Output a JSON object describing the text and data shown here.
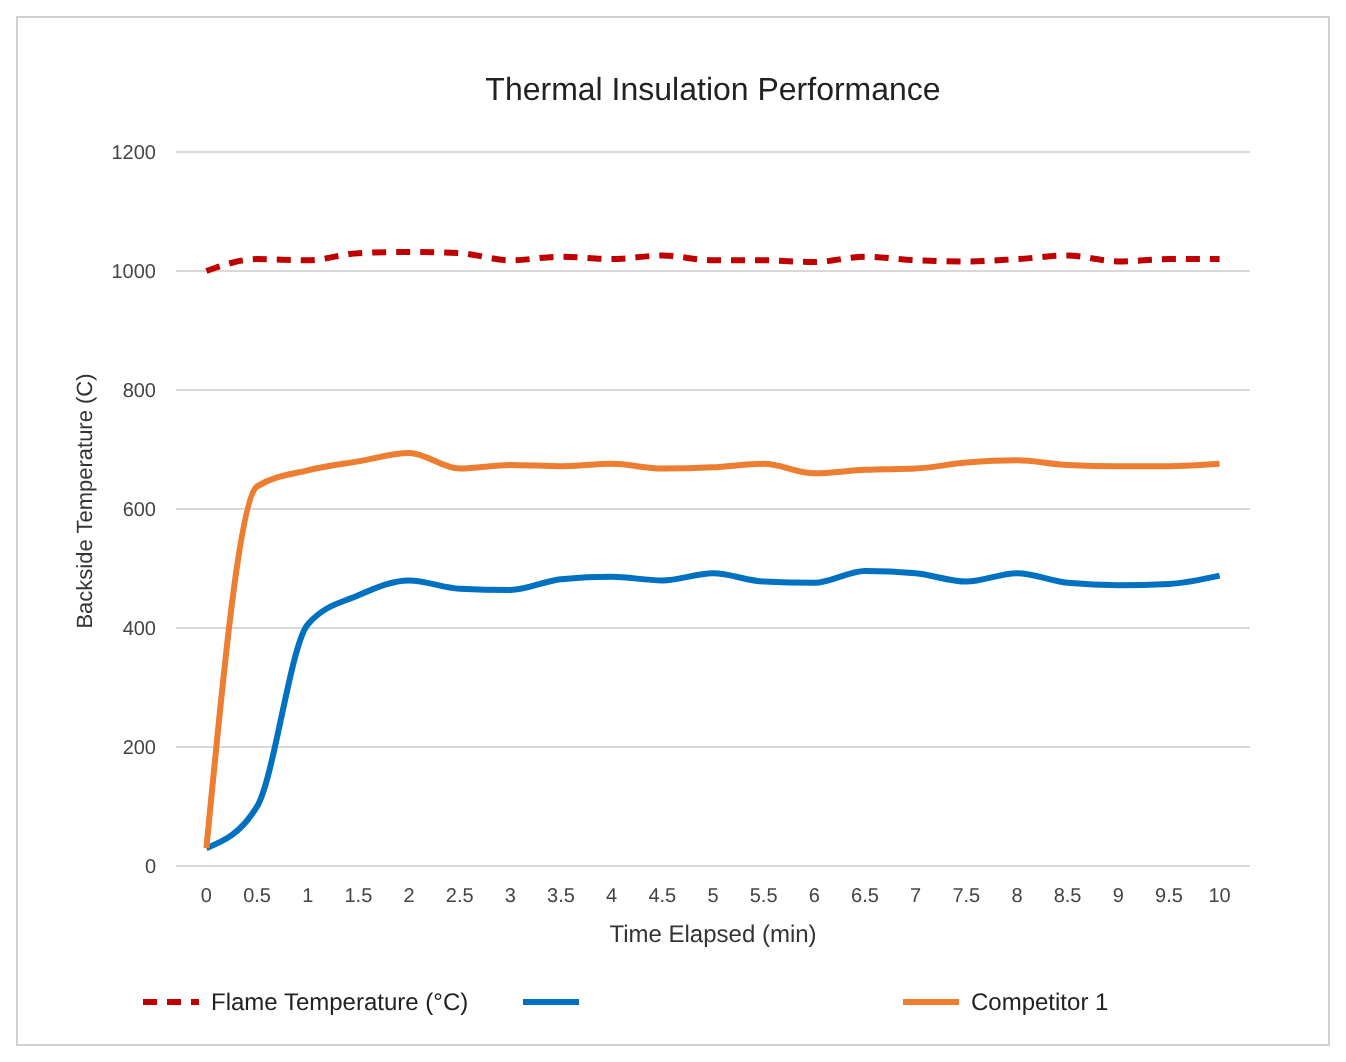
{
  "chart_data": {
    "type": "line",
    "title": "Thermal Insulation Performance",
    "xlabel": "Time Elapsed (min)",
    "ylabel": "Backside Temperature (C)",
    "x": [
      0,
      0.5,
      1,
      1.5,
      2,
      2.5,
      3,
      3.5,
      4,
      4.5,
      5,
      5.5,
      6,
      6.5,
      7,
      7.5,
      8,
      8.5,
      9,
      9.5,
      10
    ],
    "xlim": [
      -0.3,
      10.3
    ],
    "xticks": [
      0,
      0.5,
      1,
      1.5,
      2,
      2.5,
      3,
      3.5,
      4,
      4.5,
      5,
      5.5,
      6,
      6.5,
      7,
      7.5,
      8,
      8.5,
      9,
      9.5,
      10
    ],
    "ylim": [
      0,
      1200
    ],
    "yticks": [
      0,
      200,
      400,
      600,
      800,
      1000,
      1200
    ],
    "grid": "y",
    "legend": "bottom",
    "marker": "none",
    "series": [
      {
        "name": "Flame Temperature (°C)",
        "color": "#c00000",
        "line_style": "dashed",
        "values": [
          1000,
          1020,
          1018,
          1030,
          1032,
          1030,
          1018,
          1024,
          1020,
          1026,
          1018,
          1018,
          1015,
          1024,
          1018,
          1016,
          1020,
          1026,
          1016,
          1020,
          1020
        ]
      },
      {
        "color": "#0070c0",
        "line_style": "solid",
        "values": [
          30,
          100,
          406,
          455,
          480,
          466,
          464,
          482,
          486,
          480,
          492,
          478,
          476,
          496,
          492,
          478,
          492,
          476,
          472,
          474,
          488
        ]
      },
      {
        "name": "Competitor 1",
        "color": "#ed7d31",
        "line_style": "solid",
        "values": [
          30,
          638,
          665,
          680,
          694,
          668,
          674,
          672,
          676,
          668,
          670,
          676,
          660,
          666,
          668,
          678,
          682,
          674,
          672,
          672,
          676
        ]
      }
    ]
  }
}
